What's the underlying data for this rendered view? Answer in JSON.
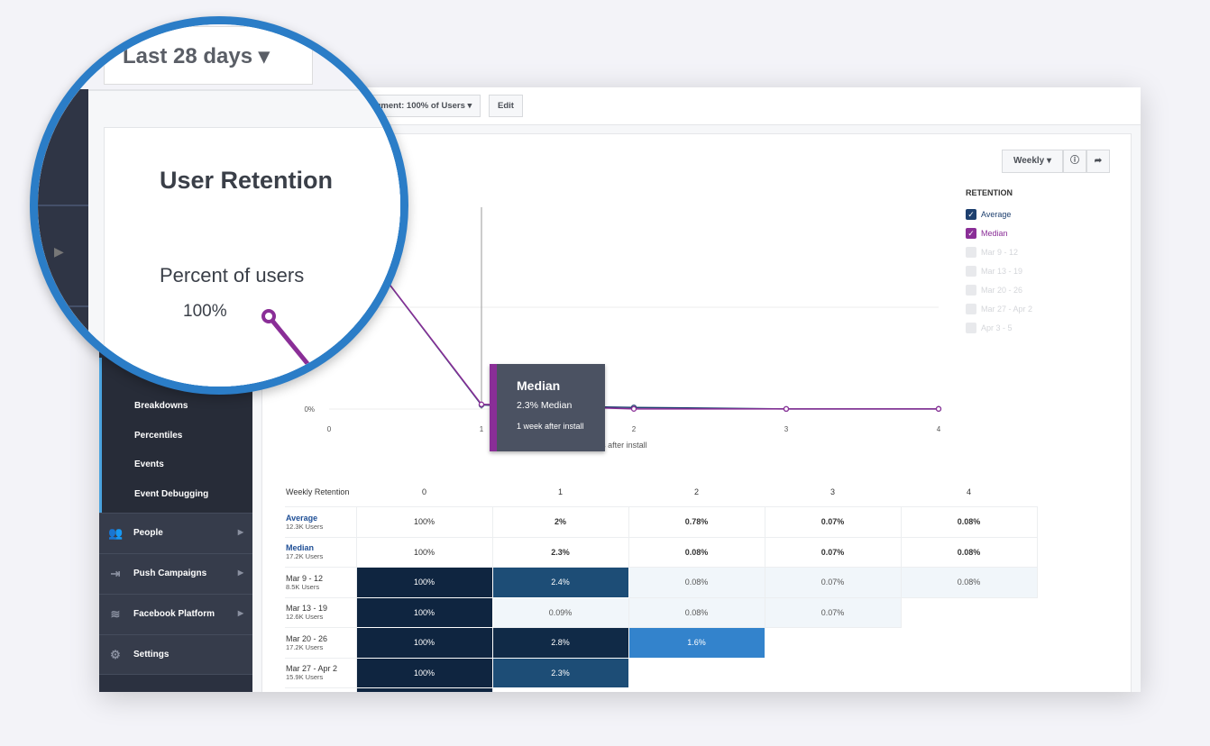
{
  "magnifier": {
    "date_range": "Last 28 days",
    "title": "User Retention",
    "y_label": "Percent of users",
    "y_top_tick": "100%"
  },
  "toolbar": {
    "segment": "Segment: 100% of Users",
    "edit": "Edit"
  },
  "sidebar": {
    "sub_items": [
      "Breakdowns",
      "Percentiles",
      "Events",
      "Event Debugging"
    ],
    "sections": [
      {
        "label": "People",
        "icon": "people-icon"
      },
      {
        "label": "Push Campaigns",
        "icon": "push-icon"
      },
      {
        "label": "Facebook Platform",
        "icon": "layers-icon"
      },
      {
        "label": "Settings",
        "icon": "gear-icon"
      }
    ]
  },
  "controls": {
    "interval": "Weekly"
  },
  "legend": {
    "title": "RETENTION",
    "items": [
      {
        "label": "Average",
        "checked": true,
        "color": "#1d3f6e"
      },
      {
        "label": "Median",
        "checked": true,
        "color": "#8a2e97"
      },
      {
        "label": "Mar 9 - 12",
        "checked": false
      },
      {
        "label": "Mar 13 - 19",
        "checked": false
      },
      {
        "label": "Mar 20 - 26",
        "checked": false
      },
      {
        "label": "Mar 27 - Apr 2",
        "checked": false
      },
      {
        "label": "Apr 3 - 5",
        "checked": false
      }
    ]
  },
  "tooltip": {
    "title": "Median",
    "value": "2.3% Median",
    "sub": "1 week after install"
  },
  "chart_data": {
    "type": "line",
    "x": [
      0,
      1,
      2,
      3,
      4
    ],
    "xlabel": "Weeks after install",
    "ylabel": "Percent of users",
    "ylim": [
      0,
      100
    ],
    "yticks": [
      "0%",
      "100%"
    ],
    "series": [
      {
        "name": "Average",
        "values": [
          100,
          2,
          0.78,
          0.07,
          0.08
        ],
        "color": "#1d3f6e"
      },
      {
        "name": "Median",
        "values": [
          100,
          2.3,
          0.08,
          0.07,
          0.08
        ],
        "color": "#8a2e97"
      }
    ]
  },
  "table": {
    "header": "Weekly Retention",
    "columns": [
      "0",
      "1",
      "2",
      "3",
      "4"
    ],
    "rows": [
      {
        "label": "Average",
        "users": "12.3K Users",
        "cells": [
          "100%",
          "2%",
          "0.78%",
          "0.07%",
          "0.08%"
        ]
      },
      {
        "label": "Median",
        "users": "17.2K Users",
        "cells": [
          "100%",
          "2.3%",
          "0.08%",
          "0.07%",
          "0.08%"
        ]
      },
      {
        "label": "Mar 9 - 12",
        "users": "8.5K Users",
        "cells": [
          "100%",
          "2.4%",
          "0.08%",
          "0.07%",
          "0.08%"
        ]
      },
      {
        "label": "Mar 13 - 19",
        "users": "12.6K Users",
        "cells": [
          "100%",
          "0.09%",
          "0.08%",
          "0.07%"
        ]
      },
      {
        "label": "Mar 20 - 26",
        "users": "17.2K Users",
        "cells": [
          "100%",
          "2.8%",
          "1.6%"
        ]
      },
      {
        "label": "Mar 27 - Apr 2",
        "users": "15.9K Users",
        "cells": [
          "100%",
          "2.3%"
        ]
      }
    ]
  }
}
